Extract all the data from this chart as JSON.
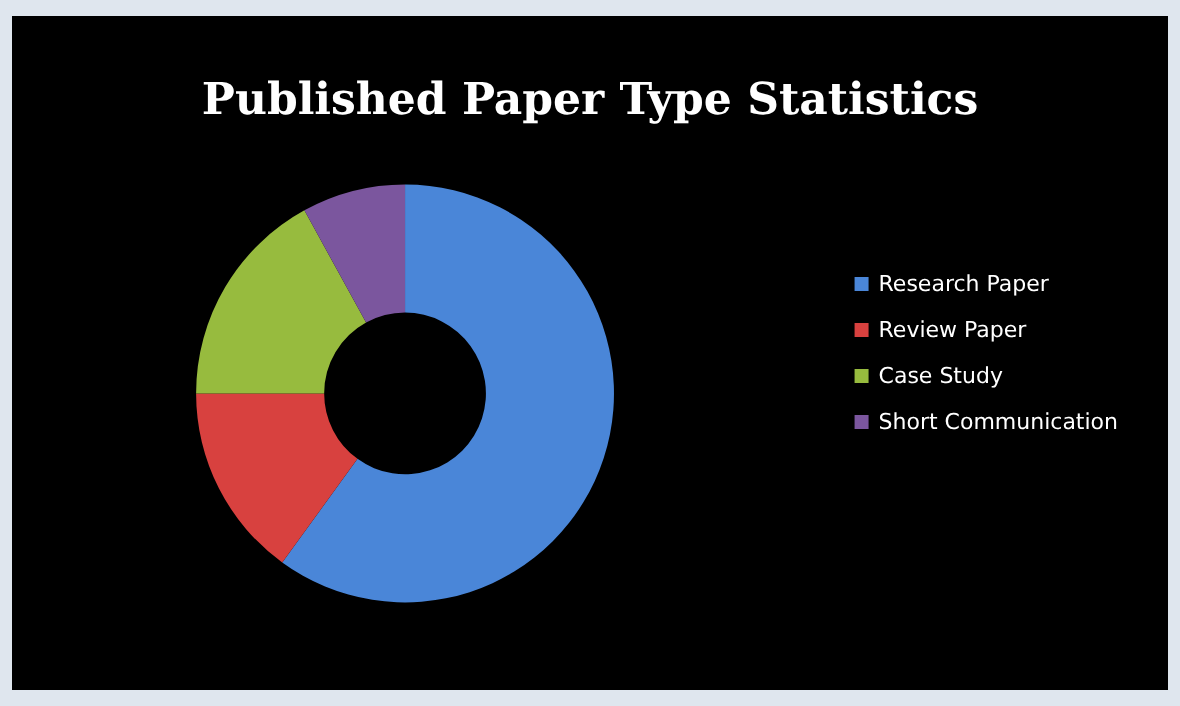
{
  "chart_data": {
    "type": "donut",
    "title": "Published Paper Type Statistics",
    "categories": [
      "Research Paper",
      "Review Paper",
      "Case Study",
      "Short Communication"
    ],
    "values": [
      60,
      15,
      17,
      8
    ],
    "colors": [
      "#4a86d8",
      "#d8413f",
      "#97bb3e",
      "#7b569e"
    ],
    "legend": "right"
  }
}
